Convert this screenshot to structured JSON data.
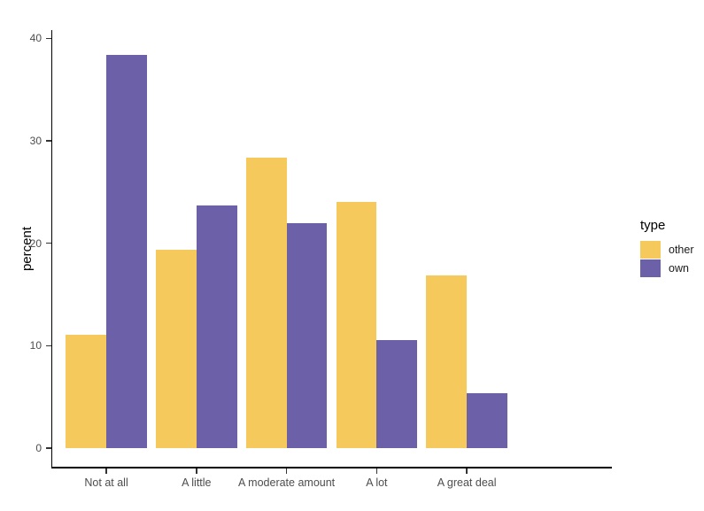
{
  "chart_data": {
    "type": "bar",
    "title": "",
    "categories": [
      "Not at all",
      "A little",
      "A moderate amount",
      "A lot",
      "A great deal"
    ],
    "series": [
      {
        "name": "other",
        "color": "#F5C95C",
        "values": [
          11.1,
          19.4,
          28.4,
          24.0,
          16.9
        ]
      },
      {
        "name": "own",
        "color": "#6C60A9",
        "values": [
          38.4,
          23.7,
          22.0,
          10.6,
          5.4
        ]
      }
    ],
    "xlabel": "",
    "ylabel": "percent",
    "ylim": [
      -1.8,
      40.8
    ],
    "y_ticks": [
      0,
      10,
      20,
      30,
      40
    ],
    "y_tick_labels": [
      "0",
      "10",
      "20",
      "30",
      "40"
    ],
    "grid": "off",
    "bar_layout": "dodge",
    "legend": {
      "title": "type",
      "position": "right",
      "items": [
        {
          "label": "other",
          "color": "#F5C95C"
        },
        {
          "label": "own",
          "color": "#6C60A9"
        }
      ]
    },
    "colors": {
      "background": "#ffffff",
      "axis_line": "#000000",
      "tick_mark": "#333333",
      "tick_label": "#4d4d4d"
    }
  }
}
